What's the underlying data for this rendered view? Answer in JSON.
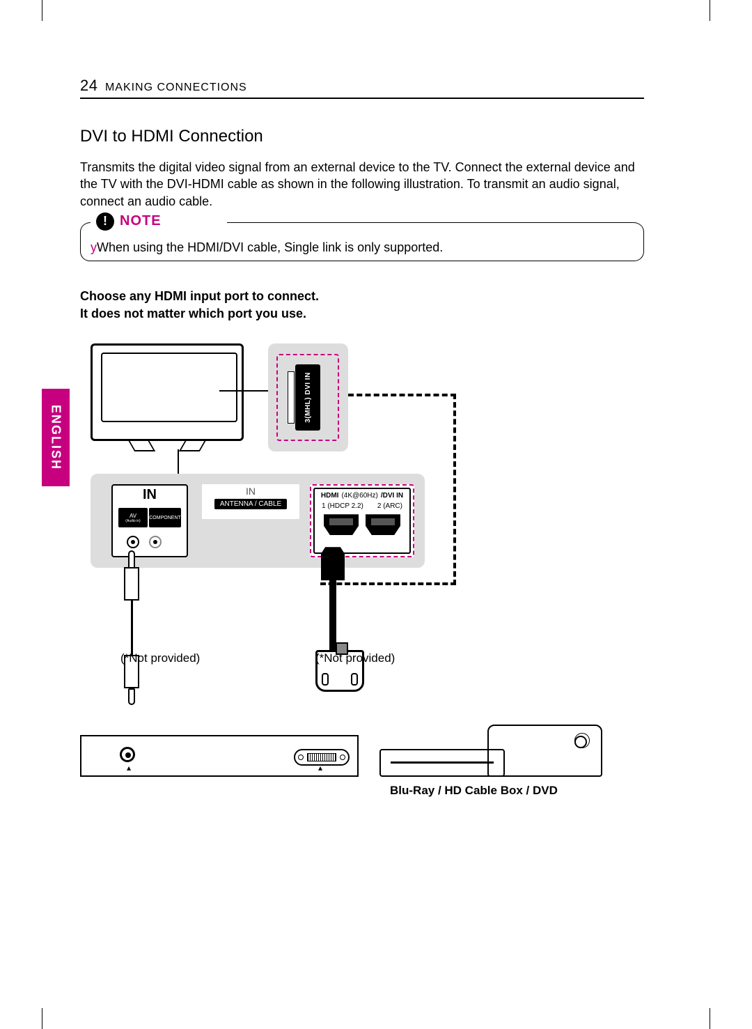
{
  "page_number": "24",
  "section": "MAKING CONNECTIONS",
  "language_tab": "ENGLISH",
  "accent_color": "#c6007e",
  "heading": "DVI to HDMI Connection",
  "intro": "Transmits the digital video signal from an external device to the TV. Connect the external device and the TV with the DVI-HDMI cable as shown in the following illustration. To transmit an audio signal, connect an audio cable.",
  "note": {
    "label": "NOTE",
    "icon_glyph": "!",
    "items": [
      "When using the HDMI/DVI cable, Single link is only supported."
    ]
  },
  "instruction": {
    "line1": "Choose any HDMI input port to connect.",
    "line2": "It does not matter which port you use."
  },
  "diagram": {
    "side_port": {
      "line1": "HDMI (4K@60Hz)/",
      "line2": "3(MHL)  DVI IN"
    },
    "back_panel": {
      "in_label": "IN",
      "av_label": "AV",
      "av_sub": "(Audio in)",
      "component_label": "COMPONENT",
      "antenna_in": "IN",
      "antenna_label": "ANTENNA / CABLE",
      "hdmi_header_left": "HDMI",
      "hdmi_header_mid": "(4K@60Hz)",
      "hdmi_header_right": "/DVI IN",
      "hdmi_port1": "1 (HDCP 2.2)",
      "hdmi_port2": "2 (ARC)"
    },
    "not_provided": "(*Not provided)",
    "device_label": "Blu-Ray / HD Cable Box / DVD"
  }
}
